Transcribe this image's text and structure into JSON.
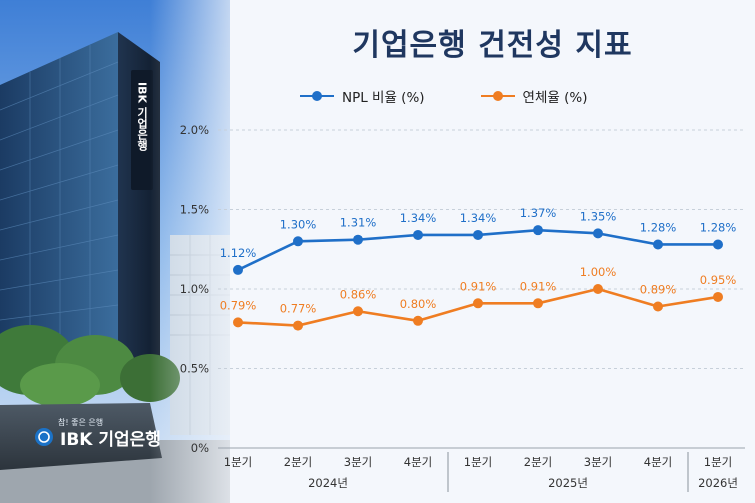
{
  "title": "기업은행 건전성 지표",
  "photo": {
    "tower_sign": "IBK 기업은행",
    "sculpture_tagline": "참! 좋은 은행",
    "sculpture_brand": "IBK 기업은행"
  },
  "colors": {
    "npl": "#1f6fc8",
    "delinquency": "#ef7d22",
    "title": "#1f3760"
  },
  "chart_data": {
    "type": "line",
    "title": "기업은행 건전성 지표",
    "categories": [
      "1분기",
      "2분기",
      "3분기",
      "4분기",
      "1분기",
      "2분기",
      "3분기",
      "4분기",
      "1분기"
    ],
    "year_groups": [
      {
        "label": "2024년",
        "start": 0,
        "end": 3
      },
      {
        "label": "2025년",
        "start": 4,
        "end": 7
      },
      {
        "label": "2026년",
        "start": 8,
        "end": 8
      }
    ],
    "series": [
      {
        "name": "NPL 비율 (%)",
        "values": [
          1.12,
          1.3,
          1.31,
          1.34,
          1.34,
          1.37,
          1.35,
          1.28,
          1.28
        ],
        "labels": [
          "1.12%",
          "1.30%",
          "1.31%",
          "1.34%",
          "1.34%",
          "1.37%",
          "1.35%",
          "1.28%",
          "1.28%"
        ]
      },
      {
        "name": "연체율 (%)",
        "values": [
          0.79,
          0.77,
          0.86,
          0.8,
          0.91,
          0.91,
          1.0,
          0.89,
          0.95
        ],
        "labels": [
          "0.79%",
          "0.77%",
          "0.86%",
          "0.80%",
          "0.91%",
          "0.91%",
          "1.00%",
          "0.89%",
          "0.95%"
        ]
      }
    ],
    "y_ticks": [
      0,
      0.5,
      1.0,
      1.5,
      2.0
    ],
    "y_tick_labels": [
      "0%",
      "0.5%",
      "1.0%",
      "1.5%",
      "2.0%"
    ],
    "ylim": [
      0,
      2.0
    ],
    "grid": true,
    "legend": "top"
  }
}
